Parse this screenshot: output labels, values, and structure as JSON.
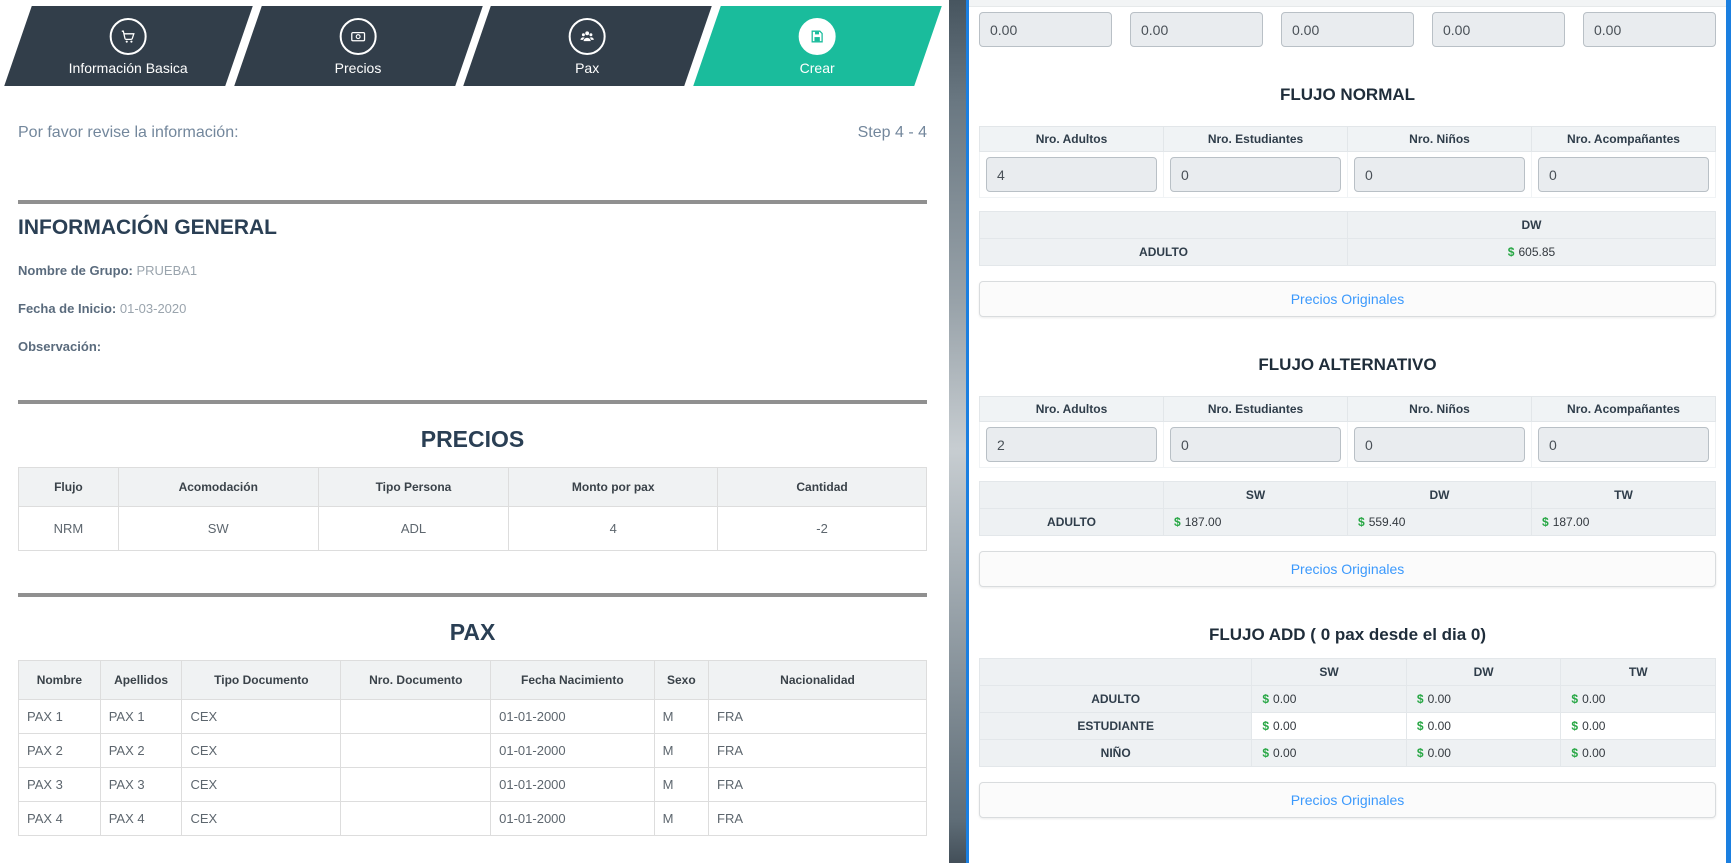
{
  "colors": {
    "wizard_dark": "#323e4a",
    "wizard_active_teal": "#1abc9c",
    "link_blue": "#3b99fc",
    "money_green": "#28a745",
    "window_focus_border": "#1b7fe0",
    "heading_navy": "#2A3F54"
  },
  "wizard": {
    "steps": [
      {
        "label": "Información Basica",
        "icon": "cart-icon",
        "active": false
      },
      {
        "label": "Precios",
        "icon": "banknote-icon",
        "active": false
      },
      {
        "label": "Pax",
        "icon": "users-icon",
        "active": false
      },
      {
        "label": "Crear",
        "icon": "save-icon",
        "active": true
      }
    ],
    "review_note": "Por favor revise la información:",
    "step_indicator": "Step 4 - 4"
  },
  "general": {
    "title": "INFORMACIÓN GENERAL",
    "fields": [
      {
        "label": "Nombre de Grupo:",
        "value": "PRUEBA1"
      },
      {
        "label": "Fecha de Inicio:",
        "value": "01-03-2020"
      },
      {
        "label": "Observación:",
        "value": ""
      }
    ]
  },
  "precios": {
    "title": "PRECIOS",
    "headers": [
      "Flujo",
      "Acomodación",
      "Tipo Persona",
      "Monto por pax",
      "Cantidad"
    ],
    "rows": [
      [
        "NRM",
        "SW",
        "ADL",
        "4",
        "-2"
      ]
    ]
  },
  "pax": {
    "title": "PAX",
    "headers": [
      "Nombre",
      "Apellidos",
      "Tipo Documento",
      "Nro. Documento",
      "Fecha Nacimiento",
      "Sexo",
      "Nacionalidad"
    ],
    "rows": [
      [
        "PAX 1",
        "PAX 1",
        "CEX",
        "",
        "01-01-2000",
        "M",
        "FRA"
      ],
      [
        "PAX 2",
        "PAX 2",
        "CEX",
        "",
        "01-01-2000",
        "M",
        "FRA"
      ],
      [
        "PAX 3",
        "PAX 3",
        "CEX",
        "",
        "01-01-2000",
        "M",
        "FRA"
      ],
      [
        "PAX 4",
        "PAX 4",
        "CEX",
        "",
        "01-01-2000",
        "M",
        "FRA"
      ]
    ]
  },
  "right": {
    "top_inputs": [
      "0.00",
      "0.00",
      "0.00",
      "0.00",
      "0.00"
    ],
    "currency_symbol": "$",
    "sections": [
      {
        "title": "FLUJO NORMAL",
        "count_headers": [
          "Nro. Adultos",
          "Nro. Estudiantes",
          "Nro. Niños",
          "Nro. Acompañantes"
        ],
        "count_values": [
          "4",
          "0",
          "0",
          "0"
        ],
        "price_headers": [
          "",
          "DW"
        ],
        "price_rows": [
          {
            "label": "ADULTO",
            "values": [
              "605.85"
            ]
          }
        ],
        "link_label": "Precios Originales"
      },
      {
        "title": "FLUJO ALTERNATIVO",
        "count_headers": [
          "Nro. Adultos",
          "Nro. Estudiantes",
          "Nro. Niños",
          "Nro. Acompañantes"
        ],
        "count_values": [
          "2",
          "0",
          "0",
          "0"
        ],
        "price_headers": [
          "",
          "SW",
          "DW",
          "TW"
        ],
        "price_rows": [
          {
            "label": "ADULTO",
            "values": [
              "187.00",
              "559.40",
              "187.00"
            ]
          }
        ],
        "link_label": "Precios Originales"
      },
      {
        "title": "FLUJO ADD ( 0 pax desde el dia 0)",
        "count_headers": null,
        "count_values": null,
        "price_headers": [
          "",
          "SW",
          "DW",
          "TW"
        ],
        "price_rows": [
          {
            "label": "ADULTO",
            "values": [
              "0.00",
              "0.00",
              "0.00"
            ]
          },
          {
            "label": "ESTUDIANTE",
            "values": [
              "0.00",
              "0.00",
              "0.00"
            ]
          },
          {
            "label": "NIÑO",
            "values": [
              "0.00",
              "0.00",
              "0.00"
            ]
          }
        ],
        "link_label": "Precios Originales"
      }
    ]
  }
}
